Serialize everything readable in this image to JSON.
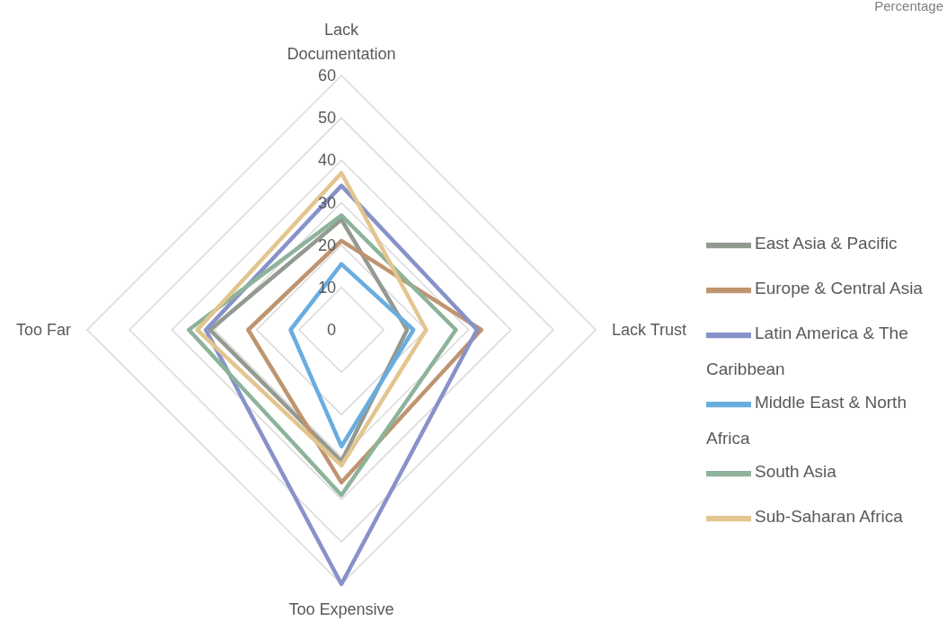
{
  "chart_data": {
    "type": "radar",
    "title": "Percentage",
    "categories": [
      "Lack Documentation",
      "Lack Trust",
      "Too Expensive",
      "Too Far"
    ],
    "ylim": [
      0,
      60
    ],
    "yticks": [
      0,
      10,
      20,
      30,
      40,
      50,
      60
    ],
    "grid": true,
    "legend": "right",
    "marker": "none",
    "series": [
      {
        "name": "East Asia & Pacific",
        "color": "#939a91",
        "values": [
          26,
          15.5,
          31,
          31
        ]
      },
      {
        "name": "Europe & Central Asia",
        "color": "#bf9470",
        "values": [
          21,
          33,
          36,
          22
        ]
      },
      {
        "name": "Latin America & The Caribbean",
        "color": "#8792c8",
        "values": [
          34,
          32,
          60,
          32
        ]
      },
      {
        "name": "Middle East & North Africa",
        "color": "#69ade0",
        "values": [
          15.5,
          17,
          27.5,
          12
        ]
      },
      {
        "name": "South Asia",
        "color": "#8db39a",
        "values": [
          27,
          27,
          39,
          36
        ]
      },
      {
        "name": "Sub-Saharan Africa",
        "color": "#e3c58f",
        "values": [
          37,
          20,
          32,
          34
        ]
      }
    ]
  }
}
